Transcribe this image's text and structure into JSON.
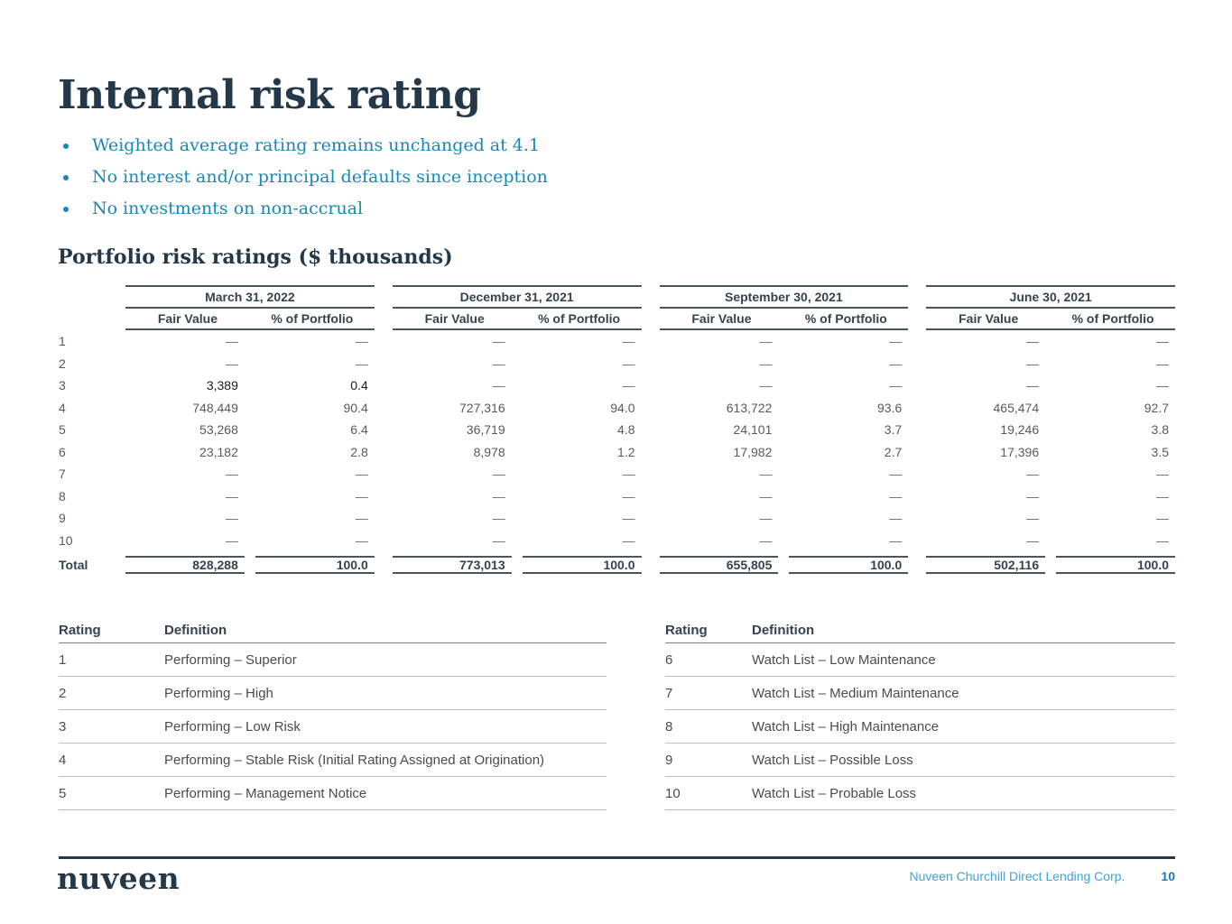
{
  "slide": {
    "title": "Internal risk rating",
    "bullets": [
      "Weighted average rating remains unchanged at 4.1",
      "No interest and/or principal defaults since inception",
      "No investments on non-accrual"
    ],
    "table_title": "Portfolio risk ratings ($ thousands)",
    "colors": {
      "navy": "#24384A",
      "teal_bullet": "#1987B5",
      "table_header": "#36434E",
      "value_gray": "#58595C",
      "emphasis_black": "#1A1A1A",
      "footer_blue": "#3FA3DA",
      "page_number_blue": "#1778BE"
    },
    "portfolio_table": {
      "groups": [
        "March 31, 2022",
        "December 31, 2021",
        "September 30, 2021",
        "June 30, 2021"
      ],
      "subheaders": [
        "Fair Value",
        "% of Portfolio"
      ],
      "rows": [
        {
          "label": "1",
          "values": [
            "—",
            "—",
            "—",
            "—",
            "—",
            "—",
            "—",
            "—"
          ]
        },
        {
          "label": "2",
          "values": [
            "—",
            "—",
            "—",
            "—",
            "—",
            "—",
            "—",
            "—"
          ]
        },
        {
          "label": "3",
          "values": [
            "3,389",
            "0.4",
            "—",
            "—",
            "—",
            "—",
            "—",
            "—"
          ],
          "emphasis": [
            0,
            1
          ]
        },
        {
          "label": "4",
          "values": [
            "748,449",
            "90.4",
            "727,316",
            "94.0",
            "613,722",
            "93.6",
            "465,474",
            "92.7"
          ]
        },
        {
          "label": "5",
          "values": [
            "53,268",
            "6.4",
            "36,719",
            "4.8",
            "24,101",
            "3.7",
            "19,246",
            "3.8"
          ]
        },
        {
          "label": "6",
          "values": [
            "23,182",
            "2.8",
            "8,978",
            "1.2",
            "17,982",
            "2.7",
            "17,396",
            "3.5"
          ]
        },
        {
          "label": "7",
          "values": [
            "—",
            "—",
            "—",
            "—",
            "—",
            "—",
            "—",
            "—"
          ]
        },
        {
          "label": "8",
          "values": [
            "—",
            "—",
            "—",
            "—",
            "—",
            "—",
            "—",
            "—"
          ]
        },
        {
          "label": "9",
          "values": [
            "—",
            "—",
            "—",
            "—",
            "—",
            "—",
            "—",
            "—"
          ]
        },
        {
          "label": "10",
          "values": [
            "—",
            "—",
            "—",
            "—",
            "—",
            "—",
            "—",
            "—"
          ]
        }
      ],
      "total_row": {
        "label": "Total",
        "values": [
          "828,288",
          "100.0",
          "773,013",
          "100.0",
          "655,805",
          "100.0",
          "502,116",
          "100.0"
        ]
      }
    },
    "definitions": {
      "left": {
        "headers": [
          "Rating",
          "Definition"
        ],
        "rows": [
          [
            "1",
            "Performing – Superior"
          ],
          [
            "2",
            "Performing – High"
          ],
          [
            "3",
            "Performing – Low Risk"
          ],
          [
            "4",
            "Performing – Stable Risk (Initial Rating Assigned at Origination)"
          ],
          [
            "5",
            "Performing – Management Notice"
          ]
        ]
      },
      "right": {
        "headers": [
          "Rating",
          "Definition"
        ],
        "rows": [
          [
            "6",
            "Watch List – Low Maintenance"
          ],
          [
            "7",
            "Watch List – Medium Maintenance"
          ],
          [
            "8",
            "Watch List – High Maintenance"
          ],
          [
            "9",
            "Watch List – Possible Loss"
          ],
          [
            "10",
            "Watch List – Probable Loss"
          ]
        ]
      }
    },
    "footer": {
      "logo": "nuveen",
      "company": "Nuveen Churchill Direct Lending Corp.",
      "page": "10"
    }
  }
}
